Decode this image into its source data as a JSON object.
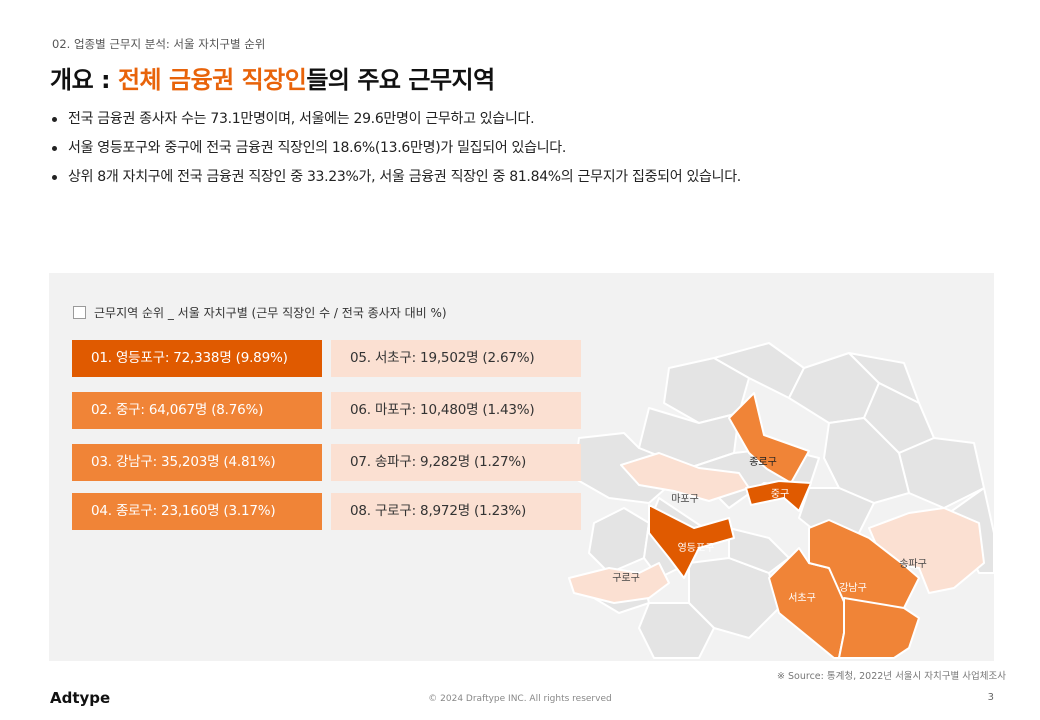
{
  "breadcrumb": "02. 업종별 근무지 분석: 서울 자치구별 순위",
  "title": {
    "prefix": "개요 : ",
    "accent": "전체 금융권 직장인",
    "suffix": "들의 주요 근무지역"
  },
  "bullets": [
    "전국 금융권 종사자 수는 73.1만명이며, 서울에는 29.6만명이 근무하고 있습니다.",
    "서울 영등포구와 중구에 전국 금융권 직장인의 18.6%(13.6만명)가 밀집되어 있습니다.",
    "상위 8개 자치구에 전국 금융권 직장인 중 33.23%가, 서울 금융권 직장인 중 81.84%의 근무지가 집중되어 있습니다."
  ],
  "legend": "근무지역 순위 _ 서울 자치구별 (근무 직장인 수 / 전국 종사자 대비 %)",
  "rankings": [
    {
      "label": "01. 영등포구: 72,338명 (9.89%)",
      "district": "영등포구",
      "workers": 72338,
      "pct": 9.89
    },
    {
      "label": "02. 중구: 64,067명 (8.76%)",
      "district": "중구",
      "workers": 64067,
      "pct": 8.76
    },
    {
      "label": "03. 강남구: 35,203명 (4.81%)",
      "district": "강남구",
      "workers": 35203,
      "pct": 4.81
    },
    {
      "label": "04. 종로구: 23,160명 (3.17%)",
      "district": "종로구",
      "workers": 23160,
      "pct": 3.17
    },
    {
      "label": "05. 서초구: 19,502명 (2.67%)",
      "district": "서초구",
      "workers": 19502,
      "pct": 2.67
    },
    {
      "label": "06. 마포구: 10,480명 (1.43%)",
      "district": "마포구",
      "workers": 10480,
      "pct": 1.43
    },
    {
      "label": "07. 송파구: 9,282명 (1.27%)",
      "district": "송파구",
      "workers": 9282,
      "pct": 1.27
    },
    {
      "label": "08. 구로구: 8,972명 (1.23%)",
      "district": "구로구",
      "workers": 8972,
      "pct": 1.23
    }
  ],
  "map_labels": {
    "jongno": "종로구",
    "junggu": "중구",
    "mapo": "마포구",
    "yeongdeungpo": "영등포구",
    "guro": "구로구",
    "seocho": "서초구",
    "gangnam": "강남구",
    "songpa": "송파구"
  },
  "colors": {
    "accent": "#e8630a",
    "tier1": "#e05a00",
    "tier2": "#f08437",
    "tier3": "#fbe0d2",
    "map_base": "#e4e4e4",
    "panel_bg": "#f2f2f2"
  },
  "source": "※ Source: 통계청, 2022년 서울시 자치구별 사업체조사",
  "brand": "Adtype",
  "copyright": "© 2024 Draftype INC. All rights reserved",
  "page_number": "3"
}
